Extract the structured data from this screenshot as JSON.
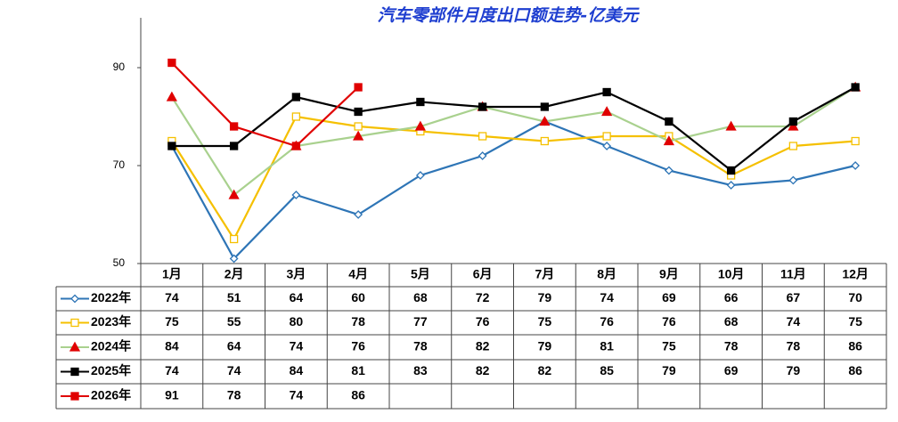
{
  "chart_data": {
    "type": "line",
    "title": "汽车零部件月度出口额走势-亿美元",
    "categories": [
      "1月",
      "2月",
      "3月",
      "4月",
      "5月",
      "6月",
      "7月",
      "8月",
      "9月",
      "10月",
      "11月",
      "12月"
    ],
    "ylim": [
      50,
      100
    ],
    "yticks": [
      50,
      70,
      90
    ],
    "series": [
      {
        "name": "2022年",
        "color": "#2e75b6",
        "marker": "diamond",
        "marker_color": "#2e75b6",
        "marker_filled": false,
        "values": [
          74,
          51,
          64,
          60,
          68,
          72,
          79,
          74,
          69,
          66,
          67,
          70
        ]
      },
      {
        "name": "2023年",
        "color": "#f5c000",
        "marker": "square",
        "marker_color": "#f5c000",
        "marker_filled": false,
        "values": [
          75,
          55,
          80,
          78,
          77,
          76,
          75,
          76,
          76,
          68,
          74,
          75
        ]
      },
      {
        "name": "2024年",
        "color": "#a9d18e",
        "marker": "triangle",
        "marker_color": "#e00000",
        "marker_filled": true,
        "values": [
          84,
          64,
          74,
          76,
          78,
          82,
          79,
          81,
          75,
          78,
          78,
          86
        ]
      },
      {
        "name": "2025年",
        "color": "#000000",
        "marker": "square",
        "marker_color": "#000000",
        "marker_filled": true,
        "values": [
          74,
          74,
          84,
          81,
          83,
          82,
          82,
          85,
          79,
          69,
          79,
          86
        ]
      },
      {
        "name": "2026年",
        "color": "#e00000",
        "marker": "square",
        "marker_color": "#e00000",
        "marker_filled": true,
        "values": [
          91,
          78,
          74,
          86,
          null,
          null,
          null,
          null,
          null,
          null,
          null,
          null
        ]
      }
    ]
  }
}
